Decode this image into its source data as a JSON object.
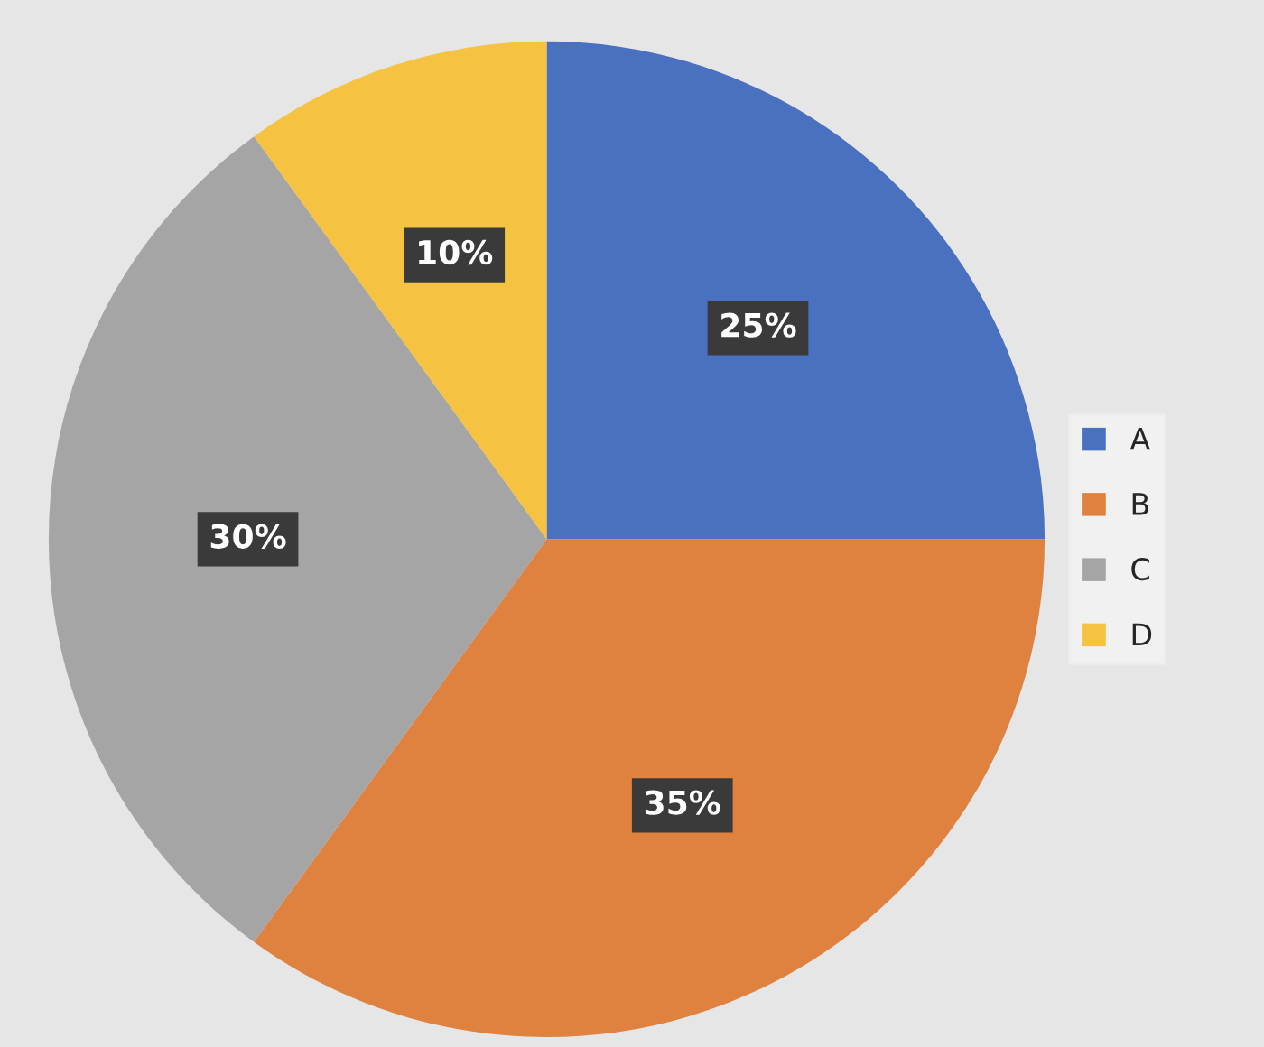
{
  "chart_data": {
    "type": "pie",
    "categories": [
      "A",
      "B",
      "C",
      "D"
    ],
    "values": [
      25,
      35,
      30,
      10
    ],
    "colors": [
      "#4a70c0",
      "#e0823f",
      "#a5a5a5",
      "#f5c242"
    ],
    "value_labels": [
      "25%",
      "35%",
      "30%",
      "10%"
    ],
    "legend": "right"
  }
}
